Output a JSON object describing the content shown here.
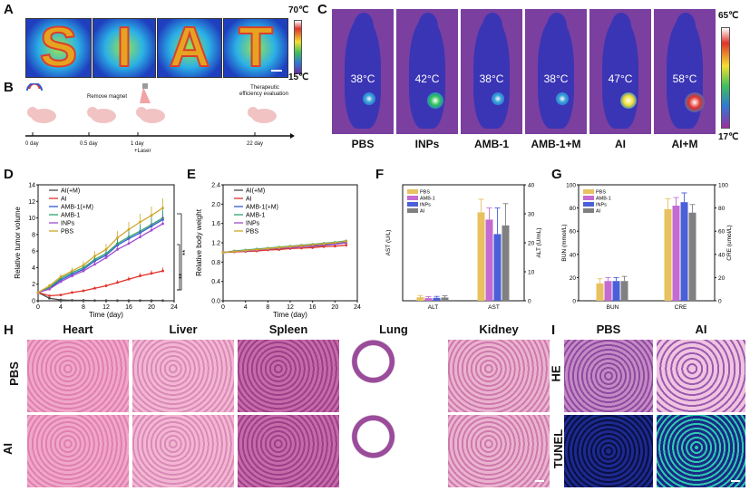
{
  "panels": {
    "A": "A",
    "B": "B",
    "C": "C",
    "D": "D",
    "E": "E",
    "F": "F",
    "G": "G",
    "H": "H",
    "I": "I"
  },
  "A": {
    "letters": [
      "S",
      "I",
      "A",
      "T"
    ],
    "scale_max": "70℃",
    "scale_min": "15℃"
  },
  "B": {
    "steps": {
      "remove_magnet": "Remove magnet",
      "therapeutic": "Therapeutic",
      "efficiency": "efficiency evaluation",
      "laser": "+Laser"
    },
    "timeline": [
      "0 day",
      "0.5 day",
      "1 day",
      "22 day"
    ]
  },
  "C": {
    "groups": [
      "PBS",
      "INPs",
      "AMB-1",
      "AMB-1+M",
      "AI",
      "AI+M"
    ],
    "temps": [
      "38°C",
      "42°C",
      "38°C",
      "38°C",
      "47°C",
      "58°C"
    ],
    "scale_max": "65℃",
    "scale_min": "17℃"
  },
  "chart_data": [
    {
      "type": "line",
      "panel": "D",
      "xlabel": "Time (day)",
      "ylabel": "Relative tumor volume",
      "xlim": [
        0,
        24
      ],
      "ylim": [
        0,
        14
      ],
      "xticks": [
        "0",
        "4",
        "8",
        "12",
        "16",
        "20",
        "24"
      ],
      "yticks": [
        "0",
        "2",
        "4",
        "6",
        "8",
        "10",
        "12",
        "14"
      ],
      "x": [
        0,
        2,
        4,
        6,
        8,
        10,
        12,
        14,
        16,
        18,
        20,
        22
      ],
      "series": [
        {
          "name": "AI(+M)",
          "color": "#4a4a4a",
          "values": [
            1,
            0.3,
            0.1,
            0.05,
            0.05,
            0.03,
            0.03,
            0.02,
            0.02,
            0.02,
            0.02,
            0.02
          ]
        },
        {
          "name": "AI",
          "color": "#e0322a",
          "values": [
            1,
            0.6,
            0.7,
            1.0,
            1.2,
            1.5,
            1.8,
            2.2,
            2.6,
            3.0,
            3.3,
            3.6
          ]
        },
        {
          "name": "AMB-1(+M)",
          "color": "#2f5bd3",
          "values": [
            1,
            1.5,
            2.5,
            3.2,
            3.8,
            4.8,
            5.5,
            6.7,
            7.5,
            8.2,
            9.0,
            9.8
          ]
        },
        {
          "name": "AMB-1",
          "color": "#2aa36b",
          "values": [
            1,
            1.6,
            2.7,
            3.4,
            4.0,
            5.0,
            5.7,
            6.9,
            7.7,
            8.4,
            9.2,
            10.0
          ]
        },
        {
          "name": "INPs",
          "color": "#a24bd1",
          "values": [
            1,
            1.4,
            2.3,
            3.0,
            3.6,
            4.4,
            5.2,
            6.2,
            6.9,
            7.7,
            8.5,
            9.3
          ]
        },
        {
          "name": "PBS",
          "color": "#d0a62a",
          "values": [
            1,
            1.8,
            2.9,
            3.6,
            4.3,
            5.4,
            6.2,
            7.6,
            8.6,
            9.5,
            10.3,
            11.2
          ]
        }
      ],
      "annotations": [
        "**",
        "**"
      ]
    },
    {
      "type": "line",
      "panel": "E",
      "xlabel": "Time (day)",
      "ylabel": "Relative body weight",
      "xlim": [
        0,
        24
      ],
      "ylim": [
        0,
        2.4
      ],
      "xticks": [
        "0",
        "4",
        "8",
        "12",
        "16",
        "20",
        "24"
      ],
      "yticks": [
        "0.0",
        "0.4",
        "0.8",
        "1.2",
        "1.6",
        "2.0",
        "2.4"
      ],
      "x": [
        0,
        2,
        4,
        6,
        8,
        10,
        12,
        14,
        16,
        18,
        20,
        22
      ],
      "series": [
        {
          "name": "AI(+M)",
          "color": "#4a4a4a",
          "values": [
            1.0,
            1.02,
            1.04,
            1.05,
            1.07,
            1.08,
            1.1,
            1.12,
            1.13,
            1.15,
            1.17,
            1.2
          ]
        },
        {
          "name": "AI",
          "color": "#e0322a",
          "values": [
            1.0,
            1.01,
            1.02,
            1.03,
            1.05,
            1.06,
            1.08,
            1.09,
            1.1,
            1.12,
            1.13,
            1.15
          ]
        },
        {
          "name": "AMB-1(+M)",
          "color": "#2f5bd3",
          "values": [
            1.0,
            1.02,
            1.04,
            1.06,
            1.08,
            1.1,
            1.11,
            1.13,
            1.15,
            1.17,
            1.19,
            1.22
          ]
        },
        {
          "name": "AMB-1",
          "color": "#2aa36b",
          "values": [
            1.0,
            1.03,
            1.05,
            1.07,
            1.09,
            1.11,
            1.13,
            1.15,
            1.17,
            1.19,
            1.21,
            1.24
          ]
        },
        {
          "name": "INPs",
          "color": "#a24bd1",
          "values": [
            1.0,
            1.02,
            1.03,
            1.05,
            1.07,
            1.09,
            1.1,
            1.12,
            1.14,
            1.16,
            1.17,
            1.2
          ]
        },
        {
          "name": "PBS",
          "color": "#d0a62a",
          "values": [
            1.0,
            1.02,
            1.04,
            1.06,
            1.08,
            1.1,
            1.12,
            1.14,
            1.16,
            1.18,
            1.2,
            1.23
          ]
        }
      ]
    },
    {
      "type": "bar",
      "panel": "F",
      "categories": [
        "ALT",
        "AST"
      ],
      "ylabel_left": "AST (U/L)",
      "ylabel_right": "ALT (U/mL)",
      "ylim": [
        0,
        40
      ],
      "yticks_right": [
        "0",
        "10",
        "20",
        "30",
        "40"
      ],
      "series": [
        {
          "name": "PBS",
          "color": "#e8c160",
          "values": [
            1.2,
            30.5
          ],
          "err": [
            0.6,
            4.5
          ]
        },
        {
          "name": "AMB-1",
          "color": "#c36bd0",
          "values": [
            0.9,
            28.0
          ],
          "err": [
            0.5,
            4.0
          ]
        },
        {
          "name": "INPs",
          "color": "#4a5fd8",
          "values": [
            1.0,
            23.0
          ],
          "err": [
            0.5,
            9.0
          ]
        },
        {
          "name": "AI",
          "color": "#808080",
          "values": [
            1.1,
            26.0
          ],
          "err": [
            0.6,
            7.5
          ]
        }
      ]
    },
    {
      "type": "bar",
      "panel": "G",
      "categories": [
        "BUN",
        "CRE"
      ],
      "ylabel_left": "BUN (mmol/L)",
      "ylabel_right": "CRE (umol/L)",
      "ylim": [
        0,
        100
      ],
      "yticks_left": [
        "0",
        "20",
        "40",
        "60",
        "80",
        "100"
      ],
      "yticks_right": [
        "0",
        "20",
        "40",
        "60",
        "80",
        "100"
      ],
      "series": [
        {
          "name": "PBS",
          "color": "#e8c160",
          "values": [
            15,
            79
          ],
          "err": [
            4,
            9
          ]
        },
        {
          "name": "AMB-1",
          "color": "#c36bd0",
          "values": [
            17,
            82
          ],
          "err": [
            3,
            7
          ]
        },
        {
          "name": "INPs",
          "color": "#4a5fd8",
          "values": [
            17,
            85
          ],
          "err": [
            3,
            8
          ]
        },
        {
          "name": "AI",
          "color": "#808080",
          "values": [
            17,
            76
          ],
          "err": [
            4,
            7
          ]
        }
      ]
    }
  ],
  "H": {
    "columns": [
      "Heart",
      "Liver",
      "Spleen",
      "Lung",
      "Kidney"
    ],
    "rows": [
      "PBS",
      "AI"
    ]
  },
  "I": {
    "columns": [
      "PBS",
      "AI"
    ],
    "rows": [
      "HE",
      "TUNEL"
    ]
  }
}
